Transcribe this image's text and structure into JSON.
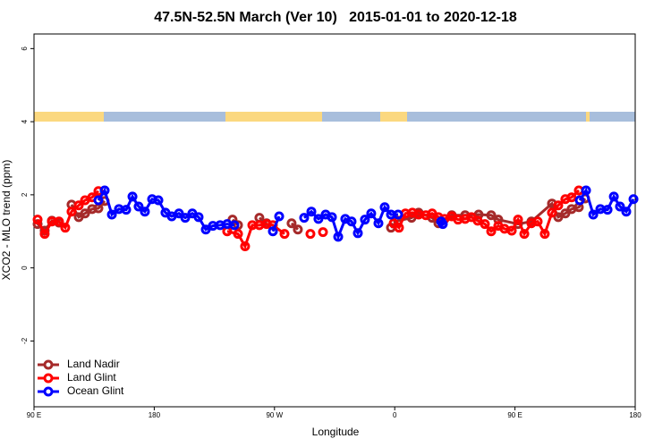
{
  "chart_data": {
    "type": "line",
    "title": "47.5N-52.5N March (Ver 10)   2015-01-01 to 2020-12-18",
    "xlabel": "Longitude",
    "ylabel": "XCO2 - MLO trend (ppm)",
    "xlim": [
      90,
      540
    ],
    "ylim": [
      -3.8,
      6.4
    ],
    "xticks": [
      {
        "value": 90,
        "label": "90 E"
      },
      180,
      {
        "value": 270,
        "label": "90 W"
      },
      {
        "value": 360,
        "label": "0"
      },
      {
        "value": 450,
        "label": "90 E"
      },
      {
        "value": 540,
        "label": "180"
      }
    ],
    "yticks": [
      -2,
      0,
      2,
      4,
      6
    ],
    "legend": "bottom-left",
    "series": [
      {
        "name": "Land Nadir",
        "color": "#a52a2a",
        "x": [
          92.7,
          98,
          103.4,
          108.7,
          null,
          118.1,
          123.5,
          128.2,
          133.5,
          138.2,
          142.9,
          null,
          238.6,
          242.7,
          null,
          258.7,
          264.1,
          null,
          282.8,
          287.5,
          null,
          357.2,
          362.5,
          372.6,
          377.9,
          388,
          392.7,
          402.7,
          412.7,
          422.8,
          432.2,
          437.5,
          452.3,
          462.3,
          477.7,
          482.4,
          487.7,
          492.4,
          497.8,
          502.5
        ],
        "values": [
          1.2,
          1.02,
          1.29,
          1.24,
          null,
          1.73,
          1.39,
          1.49,
          1.61,
          1.63,
          1.83,
          null,
          1.32,
          1.17,
          null,
          1.37,
          1.22,
          null,
          1.22,
          1.05,
          null,
          1.1,
          1.29,
          1.37,
          1.51,
          1.37,
          1.22,
          1.44,
          1.44,
          1.46,
          1.44,
          1.32,
          1.2,
          1.27,
          1.76,
          1.39,
          1.49,
          1.61,
          1.66,
          1.9
        ]
      },
      {
        "name": "Land Glint",
        "color": "#ff0000",
        "x": [
          92.7,
          98,
          103.4,
          108.7,
          113.4,
          118.1,
          123.5,
          128.2,
          133.5,
          138.2,
          null,
          234.6,
          242.7,
          248,
          253.4,
          258.7,
          264.1,
          268.8,
          277.5,
          null,
          296.9,
          null,
          306.3,
          null,
          359.2,
          363.2,
          368,
          373.2,
          377.9,
          383.3,
          388,
          392.7,
          397.3,
          402.7,
          407.4,
          412.7,
          417.4,
          422.1,
          427.5,
          432.2,
          437.5,
          442.2,
          447.6,
          452.3,
          457,
          462.3,
          467,
          472.3,
          477.7,
          482.4,
          487.7,
          492.4,
          497.8
        ],
        "values": [
          1.32,
          0.93,
          1.27,
          1.27,
          1.1,
          1.54,
          1.71,
          1.85,
          1.93,
          2.1,
          null,
          1.0,
          0.93,
          0.59,
          1.17,
          1.17,
          1.2,
          1.17,
          0.93,
          null,
          0.93,
          null,
          0.98,
          null,
          1.22,
          1.1,
          1.49,
          1.51,
          1.46,
          1.44,
          1.49,
          1.39,
          1.34,
          1.41,
          1.32,
          1.34,
          1.39,
          1.29,
          1.2,
          1.0,
          1.15,
          1.07,
          1.02,
          1.32,
          0.93,
          1.22,
          1.27,
          0.93,
          1.51,
          1.71,
          1.88,
          1.93,
          2.12
        ]
      },
      {
        "name": "Ocean Glint",
        "color": "#0000ff",
        "x": [
          138.2,
          142.9,
          148.3,
          153.6,
          159,
          163.7,
          168.3,
          173,
          178.4,
          183.1,
          188.4,
          193.1,
          198.5,
          203.2,
          208.5,
          213.2,
          218.6,
          223.9,
          229.3,
          234.6,
          240,
          null,
          268.8,
          273.5,
          null,
          292.2,
          297.6,
          302.9,
          308.3,
          313,
          317.7,
          323,
          327.7,
          332.4,
          337.7,
          342.4,
          347.8,
          352.5,
          357.2,
          362.5,
          null,
          394.7,
          396,
          null,
          498.5,
          503.2,
          508.6,
          513.9,
          519.3,
          524,
          528.6,
          533.3,
          538.7
        ],
        "values": [
          1.85,
          2.12,
          1.46,
          1.61,
          1.59,
          1.95,
          1.68,
          1.54,
          1.88,
          1.85,
          1.51,
          1.41,
          1.49,
          1.37,
          1.49,
          1.39,
          1.05,
          1.15,
          1.17,
          1.2,
          1.17,
          null,
          1.0,
          1.41,
          null,
          1.37,
          1.54,
          1.34,
          1.46,
          1.39,
          0.85,
          1.34,
          1.27,
          0.95,
          1.32,
          1.49,
          1.22,
          1.66,
          1.46,
          1.46,
          null,
          1.27,
          1.2,
          null,
          1.85,
          2.12,
          1.46,
          1.61,
          1.59,
          1.95,
          1.68,
          1.54,
          1.88
        ]
      }
    ]
  }
}
